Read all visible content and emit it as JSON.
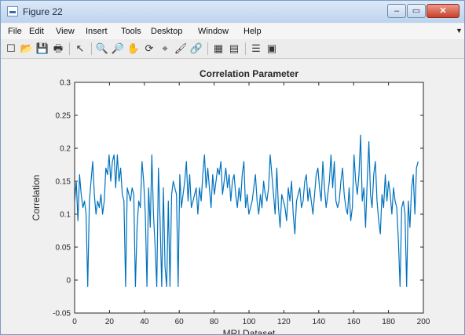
{
  "window": {
    "title": "Figure 22",
    "minimize": "–",
    "maximize": "▭",
    "close": "✕"
  },
  "menu": [
    "File",
    "Edit",
    "View",
    "Insert",
    "Tools",
    "Desktop",
    "Window",
    "Help"
  ],
  "toolbar": {
    "icons": [
      "new-icon",
      "open-icon",
      "save-icon",
      "print-icon",
      "pointer-icon",
      "zoom-in-icon",
      "zoom-out-icon",
      "pan-icon",
      "rotate-icon",
      "data-cursor-icon",
      "brush-icon",
      "link-icon",
      "colorbar-icon",
      "legend-icon",
      "hide-plot-tools-icon",
      "show-plot-tools-icon"
    ],
    "glyphs": [
      "☐",
      "📂",
      "💾",
      "🖶",
      "↖",
      "🔍",
      "🔎",
      "✋",
      "⟳",
      "⌖",
      "🖌",
      "🔗",
      "▦",
      "▤",
      "☰",
      "▣"
    ]
  },
  "colors": {
    "line": "#0072bd",
    "axes": "#262626"
  },
  "chart_data": {
    "type": "line",
    "title": "Correlation Parameter",
    "xlabel": "MRI Dataset",
    "ylabel": "Correlation",
    "xlim": [
      0,
      200
    ],
    "ylim": [
      -0.05,
      0.3
    ],
    "xticks": [
      0,
      20,
      40,
      60,
      80,
      100,
      120,
      140,
      160,
      180,
      200
    ],
    "yticks": [
      -0.05,
      0,
      0.05,
      0.1,
      0.15,
      0.2,
      0.25,
      0.3
    ],
    "ytick_labels": [
      "-0.05",
      "0",
      "0.05",
      "0.1",
      "0.15",
      "0.2",
      "0.25",
      "0.3"
    ],
    "grid": false,
    "legend": "none",
    "series": [
      {
        "values": [
          0.12,
          0.15,
          0.09,
          0.16,
          0.13,
          0.11,
          0.12,
          0.1,
          -0.01,
          0.12,
          0.15,
          0.18,
          0.13,
          0.1,
          0.12,
          0.11,
          0.13,
          0.1,
          0.12,
          0.17,
          0.16,
          0.19,
          0.15,
          0.18,
          0.19,
          0.14,
          0.19,
          0.15,
          0.17,
          0.13,
          0.12,
          -0.01,
          0.14,
          0.13,
          0.12,
          0.14,
          0.13,
          -0.01,
          0.08,
          0.12,
          0.11,
          0.18,
          0.15,
          0.1,
          -0.01,
          0.14,
          0.08,
          0.19,
          0.1,
          0.05,
          -0.01,
          0.17,
          0.09,
          -0.01,
          0.14,
          0.02,
          -0.01,
          0.12,
          -0.01,
          0.13,
          0.15,
          0.14,
          0.13,
          -0.01,
          0.16,
          0.11,
          0.13,
          0.15,
          0.18,
          0.12,
          0.16,
          0.11,
          0.12,
          0.13,
          0.14,
          0.1,
          0.14,
          0.12,
          0.16,
          0.19,
          0.14,
          0.17,
          0.14,
          0.11,
          0.16,
          0.13,
          0.15,
          0.17,
          0.16,
          0.18,
          0.13,
          0.15,
          0.17,
          0.14,
          0.16,
          0.12,
          0.15,
          0.16,
          0.13,
          0.11,
          0.14,
          0.12,
          0.16,
          0.18,
          0.11,
          0.13,
          0.1,
          0.11,
          0.12,
          0.14,
          0.16,
          0.12,
          0.1,
          0.13,
          0.11,
          0.15,
          0.13,
          0.12,
          0.14,
          0.19,
          0.16,
          0.13,
          0.1,
          0.17,
          0.11,
          0.08,
          0.13,
          0.12,
          0.11,
          0.09,
          0.14,
          0.12,
          0.15,
          0.1,
          0.07,
          0.12,
          0.13,
          0.14,
          0.11,
          0.12,
          0.15,
          0.16,
          0.12,
          0.14,
          0.12,
          0.1,
          0.13,
          0.16,
          0.17,
          0.14,
          0.12,
          0.18,
          0.14,
          0.11,
          0.13,
          0.15,
          0.19,
          0.14,
          0.18,
          0.12,
          0.11,
          0.12,
          0.15,
          0.17,
          0.13,
          0.11,
          0.1,
          0.14,
          0.09,
          0.11,
          0.19,
          0.15,
          0.13,
          0.16,
          0.22,
          0.12,
          0.14,
          0.08,
          0.15,
          0.21,
          0.13,
          0.11,
          0.16,
          0.18,
          0.12,
          0.09,
          0.07,
          0.13,
          0.11,
          0.16,
          0.12,
          0.15,
          0.13,
          0.1,
          0.14,
          0.12,
          0.11,
          0.06,
          -0.01,
          0.11,
          0.12,
          0.1,
          -0.01,
          0.12,
          0.08,
          0.14,
          0.16,
          0.1,
          0.17,
          0.18
        ]
      }
    ]
  }
}
